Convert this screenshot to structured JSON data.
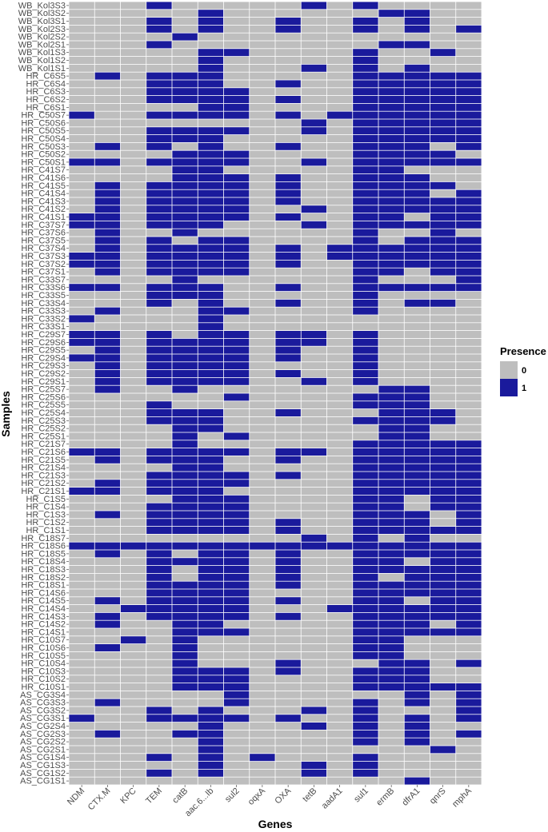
{
  "chart_data": {
    "type": "heatmap",
    "xlabel": "Genes",
    "ylabel": "Samples",
    "genes": [
      "NDM",
      "CTX.M",
      "KPC",
      "TEM",
      "catB",
      "aac.6...Ib",
      "sul2",
      "oqxA",
      "OXA",
      "tetB",
      "aadA1",
      "sul1",
      "ermB",
      "dfrA1",
      "qnrS",
      "mphA"
    ],
    "samples": [
      "WB_Kol3S3",
      "WB_Kol3S2",
      "WB_Kol3S1",
      "WB_Kol2S3",
      "WB_Kol2S2",
      "WB_Kol2S1",
      "WB_Kol1S3",
      "WB_Kol1S2",
      "WB_Kol1S1",
      "HR_C6S5",
      "HR_C6S4",
      "HR_C6S3",
      "HR_C6S2",
      "HR_C6S1",
      "HR_C50S7",
      "HR_C50S6",
      "HR_C50S5",
      "HR_C50S4",
      "HR_C50S3",
      "HR_C50S2",
      "HR_C50S1",
      "HR_C41S7",
      "HR_C41S6",
      "HR_C41S5",
      "HR_C41S4",
      "HR_C41S3",
      "HR_C41S2",
      "HR_C41S1",
      "HR_C37S7",
      "HR_C37S6",
      "HR_C37S5",
      "HR_C37S4",
      "HR_C37S3",
      "HR_C37S2",
      "HR_C37S1",
      "HR_C33S7",
      "HR_C33S6",
      "HR_C33S5",
      "HR_C33S4",
      "HR_C33S3",
      "HR_C33S2",
      "HR_C33S1",
      "HR_C29S7",
      "HR_C29S6",
      "HR_C29S5",
      "HR_C29S4",
      "HR_C29S3",
      "HR_C29S2",
      "HR_C29S1",
      "HR_C25S7",
      "HR_C25S6",
      "HR_C25S5",
      "HR_C25S4",
      "HR_C25S3",
      "HR_C25S2",
      "HR_C25S1",
      "HR_C21S7",
      "HR_C21S6",
      "HR_C21S5",
      "HR_C21S4",
      "HR_C21S3",
      "HR_C21S2",
      "HR_C21S1",
      "HR_C1S5",
      "HR_C1S4",
      "HR_C1S3",
      "HR_C1S2",
      "HR_C1S1",
      "HR_C18S7",
      "HR_C18S6",
      "HR_C18S5",
      "HR_C18S4",
      "HR_C18S3",
      "HR_C18S2",
      "HR_C18S1",
      "HR_C14S6",
      "HR_C14S5",
      "HR_C14S4",
      "HR_C14S3",
      "HR_C14S2",
      "HR_C14S1",
      "HR_C10S7",
      "HR_C10S6",
      "HR_C10S5",
      "HR_C10S4",
      "HR_C10S3",
      "HR_C10S2",
      "HR_C10S1",
      "AS_CG3S4",
      "AS_CG3S3",
      "AS_CG3S2",
      "AS_CG3S1",
      "AS_CG2S4",
      "AS_CG2S3",
      "AS_CG2S2",
      "AS_CG2S1",
      "AS_CG1S4",
      "AS_CG1S3",
      "AS_CG1S2",
      "AS_CG1S1"
    ],
    "matrix": [
      "0001000001010000",
      "0000010000001100",
      "0001010010010100",
      "0001010010010101",
      "0000100000000000",
      "0001000000001100",
      "0000011000010010",
      "0000010000010000",
      "0000010001010100",
      "0101110000011111",
      "0001110010011111",
      "0001111000011111",
      "0001111010011111",
      "0000011000011111",
      "1001111010111111",
      "0000000001011111",
      "0001111001011111",
      "0001110000011111",
      "0101010010011101",
      "0000111000011110",
      "1101111001011111",
      "0000110000011000",
      "0000111010011100",
      "0101111010011110",
      "0101111010011101",
      "0101111010011111",
      "0101111001011111",
      "1101111010011011",
      "1101110001011111",
      "0100100000010010",
      "0101011000010111",
      "0101111010111111",
      "1101111010111111",
      "1101111010011111",
      "0101111000011011",
      "0000100000010001",
      "1101110010011111",
      "0001110000010000",
      "0001010010010110",
      "0100011000010000",
      "1000010000000000",
      "0000010000000000",
      "1101011011010000",
      "1101111011010000",
      "0101111010010000",
      "1101111010010000",
      "0101111000010000",
      "0101111010010000",
      "0101111001010000",
      "0100100000001100",
      "0000001000011100",
      "0001000000011100",
      "0001110010001110",
      "0001110000011110",
      "0000110000001100",
      "0000101000001100",
      "0000100000011111",
      "1101111011011111",
      "0101110010011111",
      "0000110000011111",
      "0001111010011111",
      "0101111000011111",
      "1101110000011111",
      "0000111000011011",
      "0001111000011011",
      "0101111000011101",
      "0001111010011101",
      "0001111010011111",
      "0000000001010100",
      "1111111111111111",
      "0101011010011111",
      "0001111010011011",
      "0001011010011111",
      "0001011010010111",
      "0001111010011111",
      "0001111000011111",
      "0101111010011011",
      "0011111000111111",
      "0101111010011111",
      "0100110000011101",
      "0000111000011111",
      "0010100000011000",
      "0100100000011000",
      "0000100000011000",
      "0000100010001101",
      "0000111010011100",
      "0000111000011100",
      "0000111000011111",
      "0000001000000101",
      "0100001000010101",
      "0001010001010001",
      "1001111010010101",
      "0000010001010100",
      "0100110000010101",
      "0000010000010100",
      "0000010000000010",
      "0001010100010000",
      "0000010001010000",
      "0001010001010000",
      "0000000000000100"
    ],
    "legend": {
      "title": "Presence",
      "entries": [
        {
          "label": "0",
          "color": "#bebebe"
        },
        {
          "label": "1",
          "color": "#1a1a9c"
        }
      ],
      "placement": "right"
    },
    "colors": {
      "absent": "#bebebe",
      "present": "#1a1a9c",
      "grid": "#ffffff"
    }
  }
}
